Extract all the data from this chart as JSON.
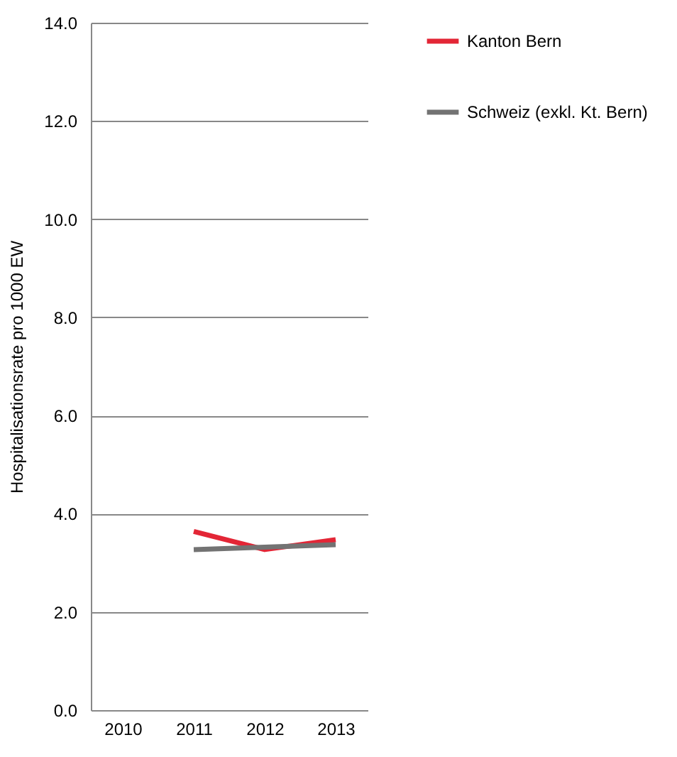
{
  "chart_data": {
    "type": "line",
    "ylabel": "Hospitalisationsrate pro 1000 EW",
    "categories": [
      "2010",
      "2011",
      "2012",
      "2013"
    ],
    "series": [
      {
        "name": "Kanton Bern",
        "color": "#e32636",
        "values": [
          null,
          3.64,
          3.27,
          3.47
        ]
      },
      {
        "name": "Schweiz (exkl. Kt. Bern)",
        "color": "#737373",
        "values": [
          null,
          3.27,
          3.32,
          3.37
        ]
      }
    ],
    "ylim": [
      0,
      14
    ],
    "yticks": [
      {
        "value": 0,
        "label": "0.0"
      },
      {
        "value": 2,
        "label": "2.0"
      },
      {
        "value": 4,
        "label": "4.0"
      },
      {
        "value": 6,
        "label": "6.0"
      },
      {
        "value": 8,
        "label": "8.0"
      },
      {
        "value": 10,
        "label": "10.0"
      },
      {
        "value": 12,
        "label": "12.0"
      },
      {
        "value": 14,
        "label": "14.0"
      }
    ],
    "grid": "y",
    "legend": "right",
    "marker": "none",
    "line_style": "solid"
  }
}
